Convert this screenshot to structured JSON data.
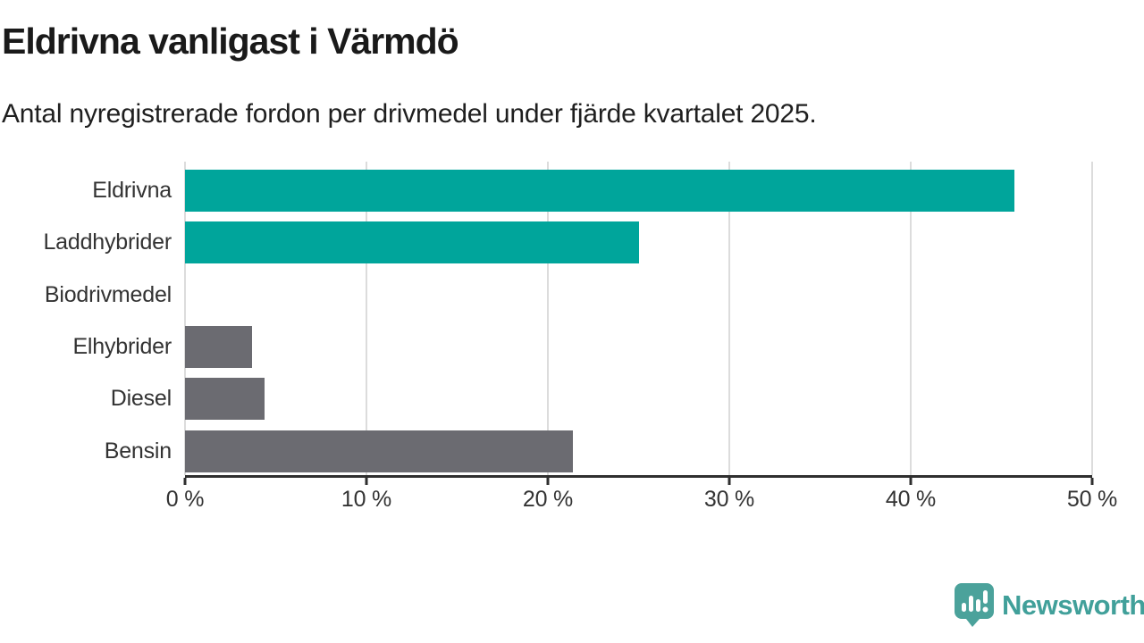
{
  "header": {
    "title": "Eldrivna vanligast i Värmdö",
    "subtitle": "Antal nyregistrerade fordon per drivmedel under fjärde kvartalet 2025."
  },
  "chart_data": {
    "type": "bar",
    "orientation": "horizontal",
    "title": "Eldrivna vanligast i Värmdö",
    "subtitle": "Antal nyregistrerade fordon per drivmedel under fjärde kvartalet 2025.",
    "categories": [
      "Eldrivna",
      "Laddhybrider",
      "Biodrivmedel",
      "Elhybrider",
      "Diesel",
      "Bensin"
    ],
    "values": [
      45.7,
      25.0,
      0,
      3.7,
      4.4,
      21.4
    ],
    "unit": "%",
    "xlim": [
      0,
      50
    ],
    "x_tick_values": [
      0,
      10,
      20,
      30,
      40,
      50
    ],
    "x_tick_labels": [
      "0 %",
      "10 %",
      "20 %",
      "30 %",
      "40 %",
      "50 %"
    ],
    "grid": true,
    "legend": "none",
    "bar_colors": [
      "#00a59b",
      "#00a59b",
      "#6b6b71",
      "#6b6b71",
      "#6b6b71",
      "#6b6b71"
    ]
  },
  "branding": {
    "logo_text": "Newsworthy",
    "logo_icon": "newsworthy-speech-bubble-bar-chart-icon",
    "logo_color": "#41a09a",
    "logo_icon_color": "#4ba29b"
  },
  "colors": {
    "accent_teal": "#00a59b",
    "neutral_gray": "#6b6b71",
    "gridline": "#dcdcdc",
    "axis": "#2f2f2f",
    "title_text": "#1a1a1a",
    "label_text": "#333333",
    "background": "#ffffff"
  }
}
